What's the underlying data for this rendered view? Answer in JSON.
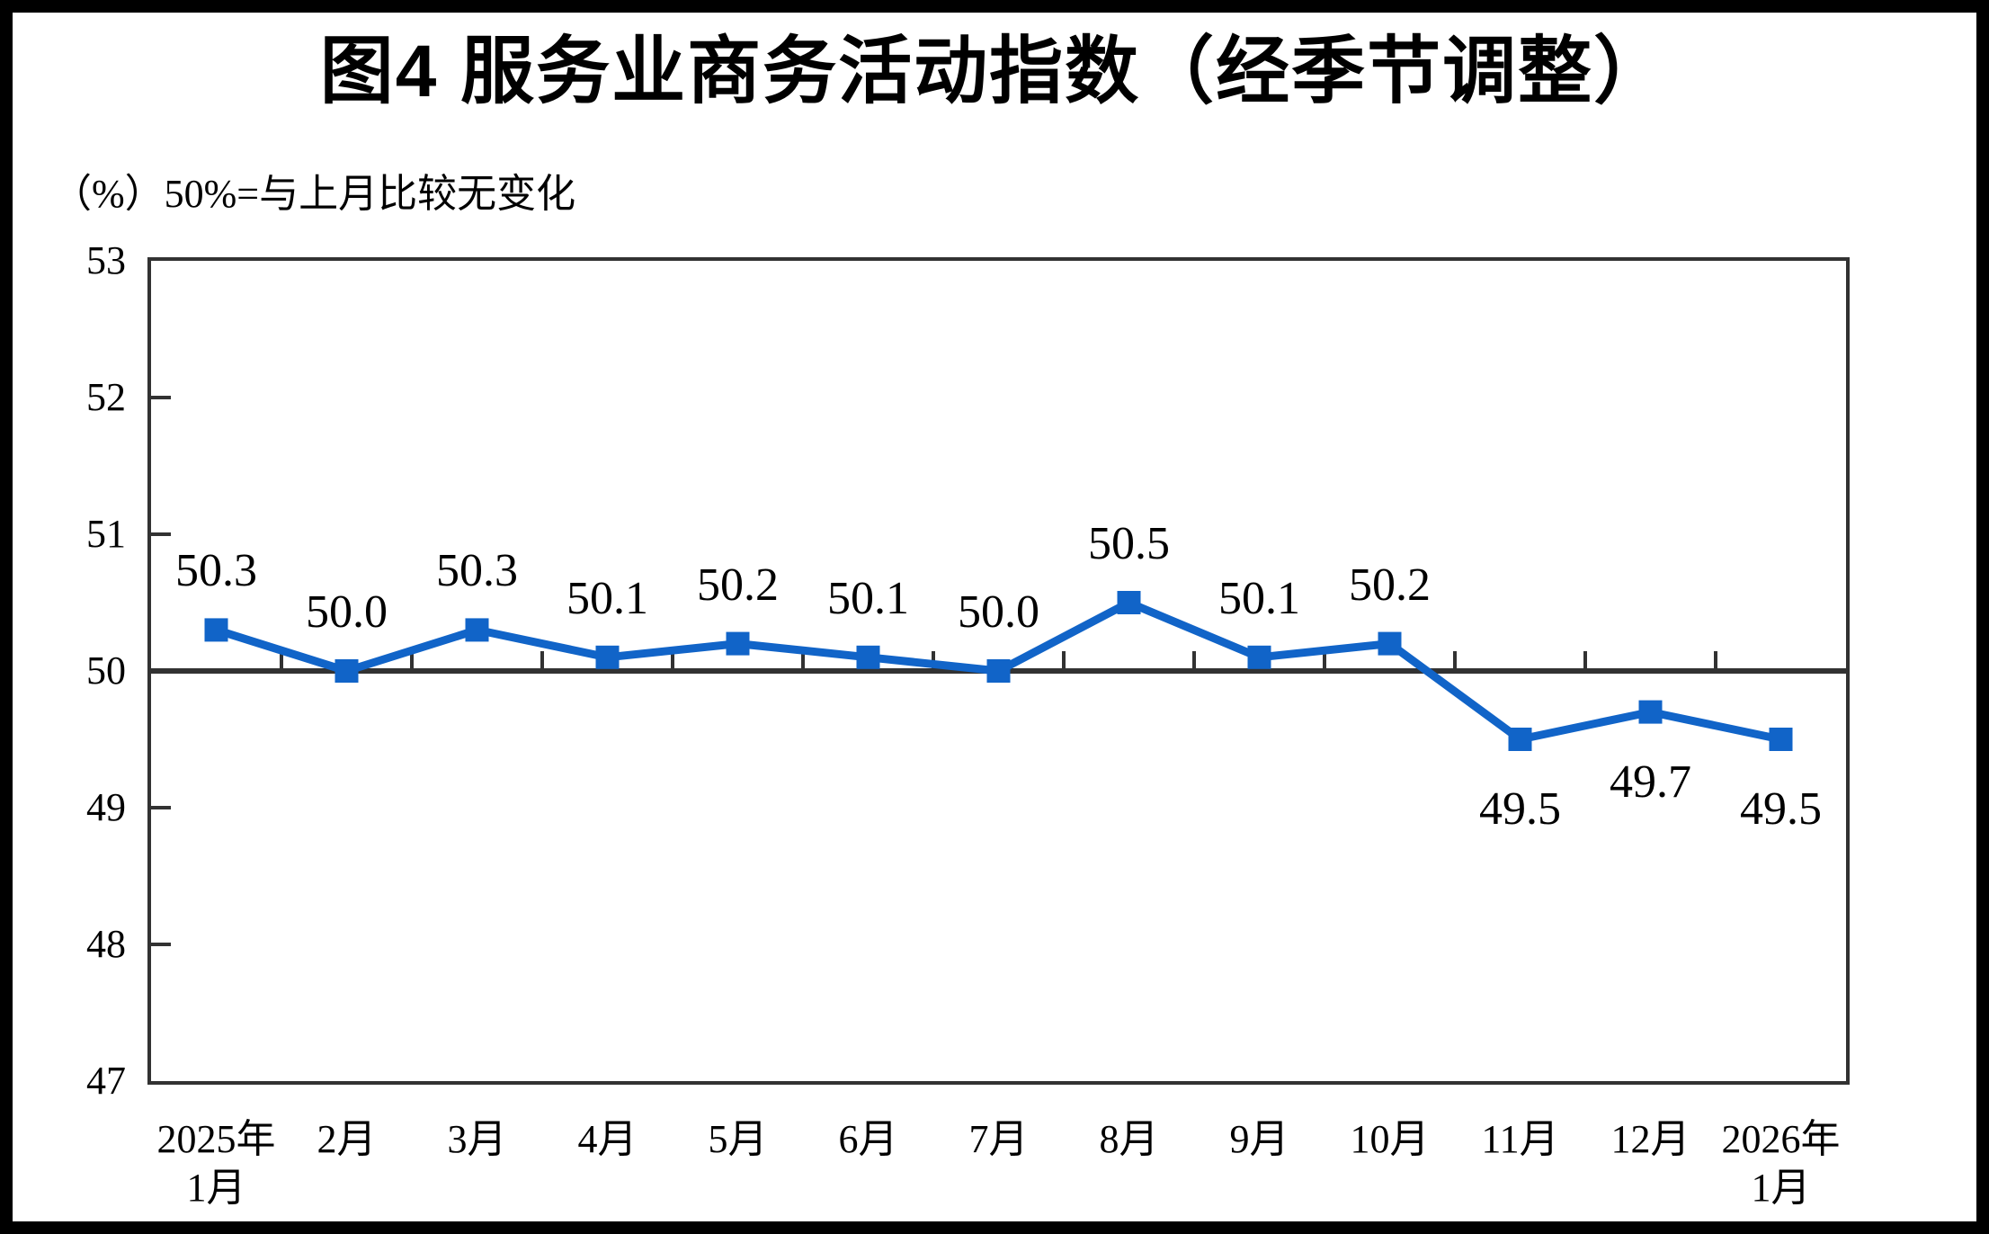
{
  "chart_data": {
    "type": "line",
    "title": "图4  服务业商务活动指数（经季节调整）",
    "subtitle": "（%）50%=与上月比较无变化",
    "categories": [
      "2025年\n1月",
      "2月",
      "3月",
      "4月",
      "5月",
      "6月",
      "7月",
      "8月",
      "9月",
      "10月",
      "11月",
      "12月",
      "2026年\n1月"
    ],
    "series": [
      {
        "name": "服务业商务活动指数（经季节调整）",
        "values": [
          50.3,
          50.0,
          50.3,
          50.1,
          50.2,
          50.1,
          50.0,
          50.5,
          50.1,
          50.2,
          49.5,
          49.7,
          49.5
        ]
      }
    ],
    "ylim": [
      47,
      53
    ],
    "yticks": [
      47,
      48,
      49,
      50,
      51,
      52,
      53
    ],
    "reference_line": 50,
    "grid": false,
    "legend": "none",
    "data_labels": true,
    "marker": "square",
    "colors": {
      "series": "#1164C8",
      "axis": "#323232",
      "text": "#000000",
      "background": "#FFFFFF",
      "frame": "#000000"
    }
  }
}
